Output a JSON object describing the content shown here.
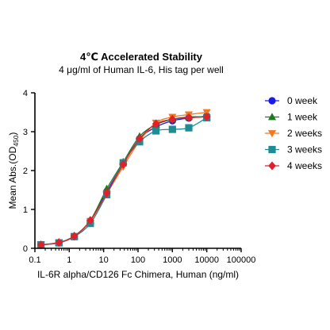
{
  "chart_data": {
    "type": "scatter",
    "title": "4℃ Accelerated Stability",
    "subtitle": "4 μg/ml of Human IL-6, His tag per well",
    "xlabel": "IL-6R alpha/CD126 Fc Chimera, Human (ng/ml)",
    "ylabel_main": "Mean Abs.(OD",
    "ylabel_sub": "450",
    "ylabel_close": ")",
    "x_scale": "log",
    "xlim": [
      0.1,
      100000
    ],
    "ylim": [
      0,
      4
    ],
    "x_ticks": [
      0.1,
      1,
      10,
      100,
      1000,
      10000,
      100000
    ],
    "x_tick_labels": [
      "0.1",
      "1",
      "10",
      "100",
      "1000",
      "10000",
      "100000"
    ],
    "y_ticks": [
      0,
      1,
      2,
      3,
      4
    ],
    "y_tick_labels": [
      "0",
      "1",
      "2",
      "3",
      "4"
    ],
    "grid": false,
    "legend_position": "right",
    "x": [
      0.15,
      0.5,
      1.4,
      4.1,
      12.3,
      37,
      111,
      333,
      1000,
      3000,
      10000
    ],
    "series": [
      {
        "name": "0 week",
        "color": "#1a1aee",
        "marker": "circle",
        "values": [
          0.09,
          0.14,
          0.31,
          0.7,
          1.46,
          2.18,
          2.82,
          3.12,
          3.28,
          3.35,
          3.4
        ]
      },
      {
        "name": "1 week",
        "color": "#1f7a1f",
        "marker": "triangle-up",
        "values": [
          0.09,
          0.15,
          0.32,
          0.72,
          1.53,
          2.22,
          2.88,
          3.18,
          3.32,
          3.38,
          3.38
        ]
      },
      {
        "name": "2 weeks",
        "color": "#f07820",
        "marker": "triangle-down",
        "values": [
          0.09,
          0.14,
          0.31,
          0.7,
          1.4,
          2.1,
          2.76,
          3.23,
          3.38,
          3.44,
          3.5
        ]
      },
      {
        "name": "3 weeks",
        "color": "#1e8c95",
        "marker": "square",
        "values": [
          0.09,
          0.14,
          0.3,
          0.64,
          1.38,
          2.2,
          2.74,
          3.02,
          3.06,
          3.1,
          3.36
        ]
      },
      {
        "name": "4 weeks",
        "color": "#e0202a",
        "marker": "diamond",
        "values": [
          0.09,
          0.15,
          0.31,
          0.72,
          1.42,
          2.16,
          2.82,
          3.2,
          3.32,
          3.36,
          3.38
        ]
      }
    ]
  }
}
